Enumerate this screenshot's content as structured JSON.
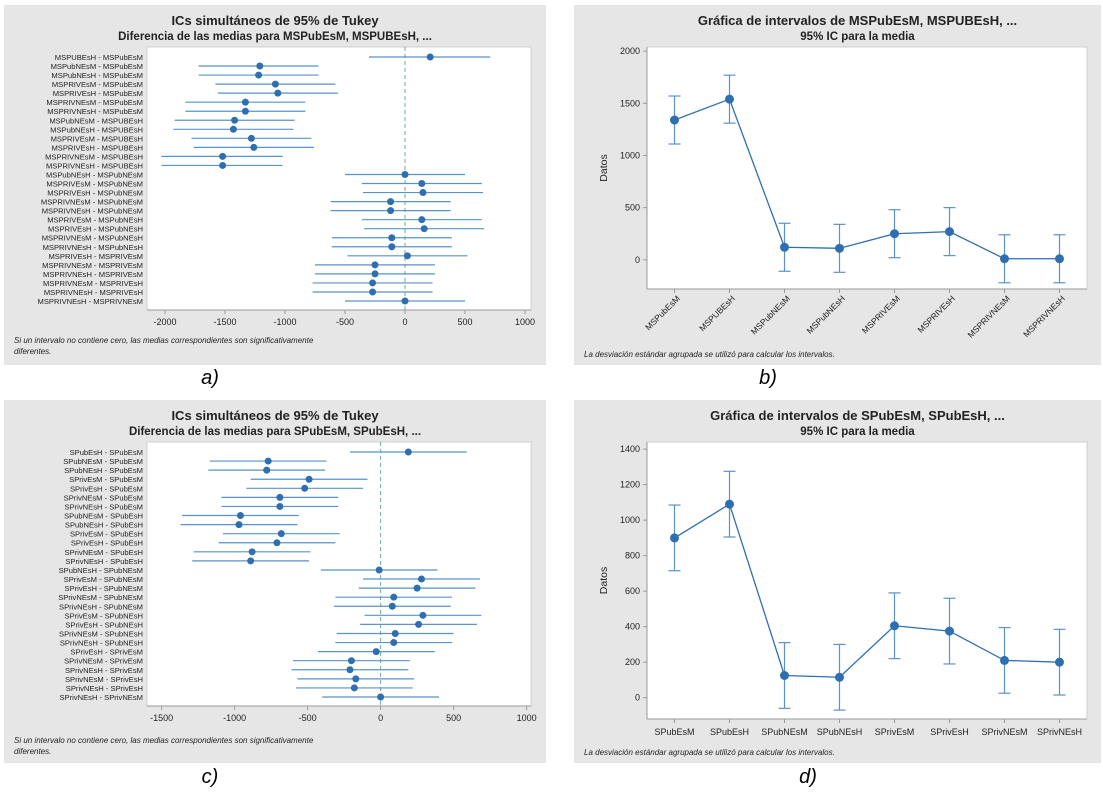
{
  "chart_data": [
    {
      "type": "interval",
      "panel": "a",
      "title": "ICs simultáneos de 95% de Tukey",
      "subtitle": "Diferencia de las medias para MSPubEsM, MSPUBEsH, ...",
      "xticks": [
        -2000,
        -1500,
        -1000,
        -500,
        0,
        500,
        1000
      ],
      "xlim": [
        -2150,
        1050
      ],
      "reference_line": 0,
      "footnote": [
        "Si un intervalo no contiene cero, las medias correspondientes son significativamente",
        "diferentes."
      ],
      "comparisons": [
        {
          "label": "MSPUBEsH - MSPubEsM",
          "mean": 210,
          "low": -300,
          "high": 710
        },
        {
          "label": "MSPubNEsM - MSPubEsM",
          "mean": -1210,
          "low": -1720,
          "high": -720
        },
        {
          "label": "MSPubNEsH - MSPubEsM",
          "mean": -1220,
          "low": -1720,
          "high": -720
        },
        {
          "label": "MSPRIVEsM - MSPubEsM",
          "mean": -1080,
          "low": -1580,
          "high": -580
        },
        {
          "label": "MSPRIVEsH - MSPubEsM",
          "mean": -1060,
          "low": -1560,
          "high": -560
        },
        {
          "label": "MSPRIVNEsM - MSPubEsM",
          "mean": -1330,
          "low": -1830,
          "high": -830
        },
        {
          "label": "MSPRIVNEsH - MSPubEsM",
          "mean": -1330,
          "low": -1830,
          "high": -830
        },
        {
          "label": "MSPubNEsM - MSPUBEsH",
          "mean": -1420,
          "low": -1920,
          "high": -920
        },
        {
          "label": "MSPubNEsH - MSPUBEsH",
          "mean": -1430,
          "low": -1930,
          "high": -930
        },
        {
          "label": "MSPRIVEsM - MSPUBEsH",
          "mean": -1280,
          "low": -1780,
          "high": -780
        },
        {
          "label": "MSPRIVEsH - MSPUBEsH",
          "mean": -1260,
          "low": -1760,
          "high": -760
        },
        {
          "label": "MSPRIVNEsM - MSPUBEsH",
          "mean": -1520,
          "low": -2030,
          "high": -1020
        },
        {
          "label": "MSPRIVNEsH - MSPUBEsH",
          "mean": -1520,
          "low": -2030,
          "high": -1020
        },
        {
          "label": "MSPubNEsH - MSPubNEsM",
          "mean": 0,
          "low": -500,
          "high": 500
        },
        {
          "label": "MSPRIVEsM - MSPubNEsM",
          "mean": 140,
          "low": -360,
          "high": 640
        },
        {
          "label": "MSPRIVEsH - MSPubNEsM",
          "mean": 150,
          "low": -350,
          "high": 650
        },
        {
          "label": "MSPRIVNEsM - MSPubNEsM",
          "mean": -120,
          "low": -620,
          "high": 380
        },
        {
          "label": "MSPRIVNEsH - MSPubNEsM",
          "mean": -120,
          "low": -620,
          "high": 380
        },
        {
          "label": "MSPRIVEsM - MSPubNEsH",
          "mean": 140,
          "low": -360,
          "high": 640
        },
        {
          "label": "MSPRIVEsH - MSPubNEsH",
          "mean": 160,
          "low": -340,
          "high": 660
        },
        {
          "label": "MSPRIVNEsM - MSPubNEsH",
          "mean": -110,
          "low": -610,
          "high": 390
        },
        {
          "label": "MSPRIVNEsH - MSPubNEsH",
          "mean": -110,
          "low": -610,
          "high": 390
        },
        {
          "label": "MSPRIVEsH - MSPRIVEsM",
          "mean": 20,
          "low": -480,
          "high": 520
        },
        {
          "label": "MSPRIVNEsM - MSPRIVEsM",
          "mean": -250,
          "low": -750,
          "high": 250
        },
        {
          "label": "MSPRIVNEsH - MSPRIVEsM",
          "mean": -250,
          "low": -750,
          "high": 250
        },
        {
          "label": "MSPRIVNEsM - MSPRIVEsH",
          "mean": -270,
          "low": -770,
          "high": 230
        },
        {
          "label": "MSPRIVNEsH - MSPRIVEsH",
          "mean": -270,
          "low": -770,
          "high": 230
        },
        {
          "label": "MSPRIVNEsH - MSPRIVNEsM",
          "mean": 0,
          "low": -500,
          "high": 500
        }
      ]
    },
    {
      "type": "line",
      "panel": "b",
      "title": "Gráfica de intervalos de MSPubEsM, MSPUBEsH, ...",
      "subtitle": "95% IC para la media",
      "ylabel": "Datos",
      "ylim": [
        -280,
        2040
      ],
      "yticks": [
        0,
        500,
        1000,
        1500,
        2000
      ],
      "categories": [
        "MSPubEsM",
        "MSPUBEsH",
        "MSPubNEsM",
        "MSPubNEsH",
        "MSPRIVEsM",
        "MSPRIVEsH",
        "MSPRIVNEsM",
        "MSPRIVNEsH"
      ],
      "means": [
        1340,
        1540,
        120,
        110,
        250,
        270,
        10,
        10
      ],
      "lower": [
        1110,
        1310,
        -110,
        -120,
        20,
        40,
        -220,
        -220
      ],
      "upper": [
        1570,
        1770,
        350,
        340,
        480,
        500,
        240,
        240
      ],
      "footnote": "La desviación estándar agrupada se utilizó para calcular los intervalos."
    },
    {
      "type": "interval",
      "panel": "c",
      "title": "ICs simultáneos de 95% de Tukey",
      "subtitle": "Diferencia de las medias para SPubEsM, SPubEsH, ...",
      "xticks": [
        -1500,
        -1000,
        -500,
        0,
        500,
        1000
      ],
      "xlim": [
        -1600,
        1030
      ],
      "reference_line": 0,
      "footnote": [
        "Si un intervalo no contiene cero, las medias correspondientes son significativamente",
        "diferentes."
      ],
      "comparisons": [
        {
          "label": "SPubEsH - SPubEsM",
          "mean": 190,
          "low": -210,
          "high": 590
        },
        {
          "label": "SPubNEsM - SPubEsM",
          "mean": -770,
          "low": -1170,
          "high": -370
        },
        {
          "label": "SPubNEsH - SPubEsM",
          "mean": -780,
          "low": -1180,
          "high": -380
        },
        {
          "label": "SPrivEsM - SPubEsM",
          "mean": -490,
          "low": -890,
          "high": -90
        },
        {
          "label": "SPrivEsH - SPubEsM",
          "mean": -520,
          "low": -920,
          "high": -120
        },
        {
          "label": "SPrivNEsM - SPubEsM",
          "mean": -690,
          "low": -1090,
          "high": -290
        },
        {
          "label": "SPrivNEsH - SPubEsM",
          "mean": -690,
          "low": -1090,
          "high": -290
        },
        {
          "label": "SPubNEsM - SPubEsH",
          "mean": -960,
          "low": -1360,
          "high": -560
        },
        {
          "label": "SPubNEsH - SPubEsH",
          "mean": -970,
          "low": -1370,
          "high": -570
        },
        {
          "label": "SPrivEsM - SPubEsH",
          "mean": -680,
          "low": -1080,
          "high": -280
        },
        {
          "label": "SPrivEsH - SPubEsH",
          "mean": -710,
          "low": -1110,
          "high": -310
        },
        {
          "label": "SPrivNEsM - SPubEsH",
          "mean": -880,
          "low": -1280,
          "high": -480
        },
        {
          "label": "SPrivNEsH - SPubEsH",
          "mean": -890,
          "low": -1290,
          "high": -490
        },
        {
          "label": "SPubNEsH - SPubNEsM",
          "mean": -10,
          "low": -410,
          "high": 390
        },
        {
          "label": "SPrivEsM - SPubNEsM",
          "mean": 280,
          "low": -120,
          "high": 680
        },
        {
          "label": "SPrivEsH - SPubNEsM",
          "mean": 250,
          "low": -150,
          "high": 650
        },
        {
          "label": "SPrivNEsM - SPubNEsM",
          "mean": 90,
          "low": -310,
          "high": 490
        },
        {
          "label": "SPrivNEsH - SPubNEsM",
          "mean": 80,
          "low": -320,
          "high": 480
        },
        {
          "label": "SPrivEsM - SPubNEsH",
          "mean": 290,
          "low": -110,
          "high": 690
        },
        {
          "label": "SPrivEsH - SPubNEsH",
          "mean": 260,
          "low": -140,
          "high": 660
        },
        {
          "label": "SPrivNEsM - SPubNEsH",
          "mean": 100,
          "low": -300,
          "high": 500
        },
        {
          "label": "SPrivNEsH - SPubNEsH",
          "mean": 90,
          "low": -310,
          "high": 490
        },
        {
          "label": "SPrivEsH - SPrivEsM",
          "mean": -30,
          "low": -430,
          "high": 370
        },
        {
          "label": "SPrivNEsM - SPrivEsM",
          "mean": -200,
          "low": -600,
          "high": 200
        },
        {
          "label": "SPrivNEsH - SPrivEsM",
          "mean": -210,
          "low": -610,
          "high": 190
        },
        {
          "label": "SPrivNEsM - SPrivEsH",
          "mean": -170,
          "low": -570,
          "high": 230
        },
        {
          "label": "SPrivNEsH - SPrivEsH",
          "mean": -180,
          "low": -580,
          "high": 220
        },
        {
          "label": "SPrivNEsH - SPrivNEsM",
          "mean": 0,
          "low": -400,
          "high": 400
        }
      ]
    },
    {
      "type": "line",
      "panel": "d",
      "title": "Gráfica de intervalos de SPubEsM, SPubEsH, ...",
      "subtitle": "95% IC para la media",
      "ylabel": "Datos",
      "ylim": [
        -120,
        1440
      ],
      "yticks": [
        0,
        200,
        400,
        600,
        800,
        1000,
        1200,
        1400
      ],
      "categories": [
        "SPubEsM",
        "SPubEsH",
        "SPubNEsM",
        "SPubNEsH",
        "SPrivEsM",
        "SPrivEsH",
        "SPrivNEsM",
        "SPrivNEsH"
      ],
      "means": [
        900,
        1090,
        125,
        115,
        405,
        375,
        210,
        200
      ],
      "lower": [
        715,
        905,
        -60,
        -70,
        220,
        190,
        25,
        15
      ],
      "upper": [
        1085,
        1275,
        310,
        300,
        590,
        560,
        395,
        385
      ],
      "footnote": "La desviación estándar agrupada se utilizó para calcular los intervalos."
    }
  ],
  "captions": [
    "a)",
    "b)",
    "c)",
    "d)"
  ],
  "colors": {
    "panel_bg": "#e6e6e6",
    "plot_bg": "#ffffff",
    "series": "#2e6fb2",
    "interval": "#5b92c8",
    "refline": "#6aa9a3",
    "axis": "#9a9a9a",
    "text": "#222222"
  }
}
